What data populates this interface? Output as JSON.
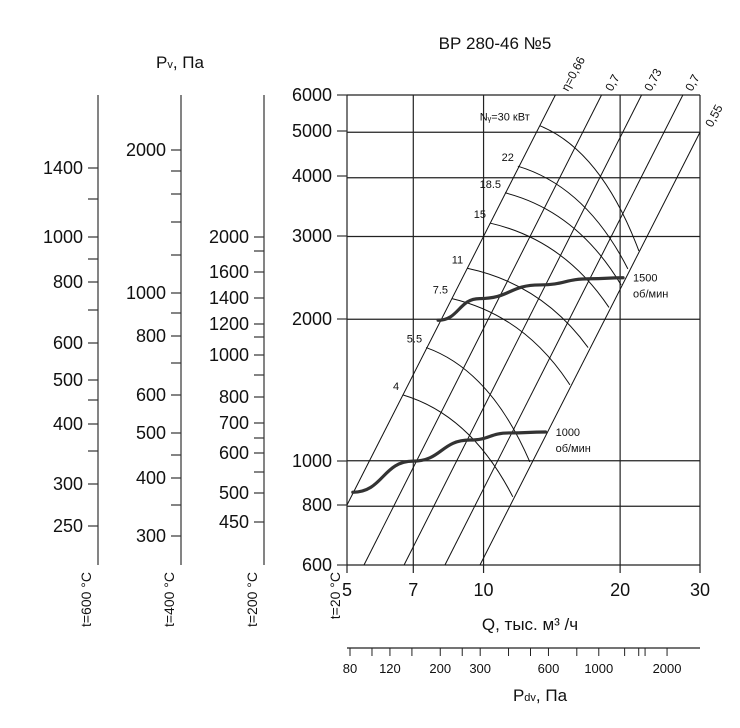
{
  "chart_data": {
    "type": "line",
    "title": "ВР 280-46 №5",
    "xlabel": "Q, тыс. м³ /ч",
    "x_scale": "log",
    "y_scale": "log",
    "xlim": [
      5,
      30
    ],
    "ylim": [
      600,
      6000
    ],
    "x_ticks": [
      5,
      7,
      10,
      20,
      30
    ],
    "y_ticks": [
      600,
      800,
      1000,
      2000,
      3000,
      4000,
      5000,
      6000
    ],
    "grid": true,
    "pv_label": {
      "main": "P",
      "sub": "v",
      "rest": ", Па"
    },
    "temperature_scales": [
      {
        "label": "t=600 °C",
        "ticks": [
          "1400",
          "1000",
          "800",
          "600",
          "500",
          "400",
          "300",
          "250"
        ]
      },
      {
        "label": "t=400 °C",
        "ticks": [
          "2000",
          "1000",
          "800",
          "600",
          "500",
          "400",
          "300"
        ]
      },
      {
        "label": "t=200 °C",
        "ticks": [
          "2000",
          "1600",
          "1400",
          "1200",
          "1000",
          "800",
          "700",
          "600",
          "500",
          "450"
        ]
      },
      {
        "label": "t=20 °C",
        "ticks": [
          "6000",
          "5000",
          "4000",
          "3000",
          "2000",
          "1000",
          "800",
          "600"
        ]
      }
    ],
    "pdv_scale": {
      "label_main": "P",
      "label_sub": "dv",
      "label_rest": ", Па",
      "labeled_ticks": [
        "80",
        "120",
        "200",
        "300",
        "600",
        "1000",
        "2000"
      ],
      "all_ticks": [
        80,
        100,
        120,
        150,
        200,
        250,
        300,
        400,
        500,
        600,
        800,
        1000,
        1300,
        1500,
        1600,
        2000
      ]
    },
    "efficiency_lines": [
      {
        "label": "η=0,66",
        "points": [
          [
            14.4,
            6000
          ],
          [
            5.0,
            805
          ]
        ]
      },
      {
        "label": "0,7",
        "points": [
          [
            18.2,
            6000
          ],
          [
            5.45,
            600
          ]
        ]
      },
      {
        "label": "0,73",
        "points": [
          [
            22.3,
            6000
          ],
          [
            6.68,
            600
          ]
        ]
      },
      {
        "label": "0,7",
        "points": [
          [
            27.5,
            6000
          ],
          [
            8.22,
            600
          ]
        ]
      },
      {
        "label": "0,55",
        "points": [
          [
            30,
            5000
          ],
          [
            9.82,
            600
          ]
        ]
      }
    ],
    "power_curves": [
      {
        "label": "Nᵧ=30 кВт",
        "points": [
          [
            13.3,
            5162
          ],
          [
            22.0,
            2795
          ]
        ]
      },
      {
        "label": "22",
        "points": [
          [
            11.9,
            4233
          ],
          [
            20.8,
            2560
          ]
        ]
      },
      {
        "label": "18.5",
        "points": [
          [
            11.15,
            3716
          ],
          [
            20.1,
            2366
          ]
        ]
      },
      {
        "label": "15",
        "points": [
          [
            10.33,
            3204
          ],
          [
            18.9,
            2119
          ]
        ]
      },
      {
        "label": "11",
        "points": [
          [
            9.2,
            2567
          ],
          [
            17.0,
            1741
          ]
        ]
      },
      {
        "label": "7.5",
        "points": [
          [
            8.52,
            2213
          ],
          [
            15.5,
            1450
          ]
        ]
      },
      {
        "label": "5.5",
        "points": [
          [
            7.47,
            1741
          ],
          [
            12.65,
            994
          ]
        ]
      },
      {
        "label": "4",
        "points": [
          [
            6.65,
            1380
          ],
          [
            11.6,
            838
          ]
        ]
      }
    ],
    "series": [
      {
        "name": "1500 об/мин",
        "name_line1": "1500",
        "name_line2": "об/мин",
        "points": [
          [
            7.94,
            1990
          ],
          [
            9.8,
            2213
          ],
          [
            13.3,
            2366
          ],
          [
            17.2,
            2439
          ],
          [
            20.3,
            2451
          ]
        ]
      },
      {
        "name": "1000 об/мин",
        "name_line1": "1000",
        "name_line2": "об/мин",
        "points": [
          [
            5.15,
            857
          ],
          [
            6.99,
            998
          ],
          [
            9.33,
            1107
          ],
          [
            11.4,
            1146
          ],
          [
            13.7,
            1151
          ]
        ]
      }
    ]
  }
}
